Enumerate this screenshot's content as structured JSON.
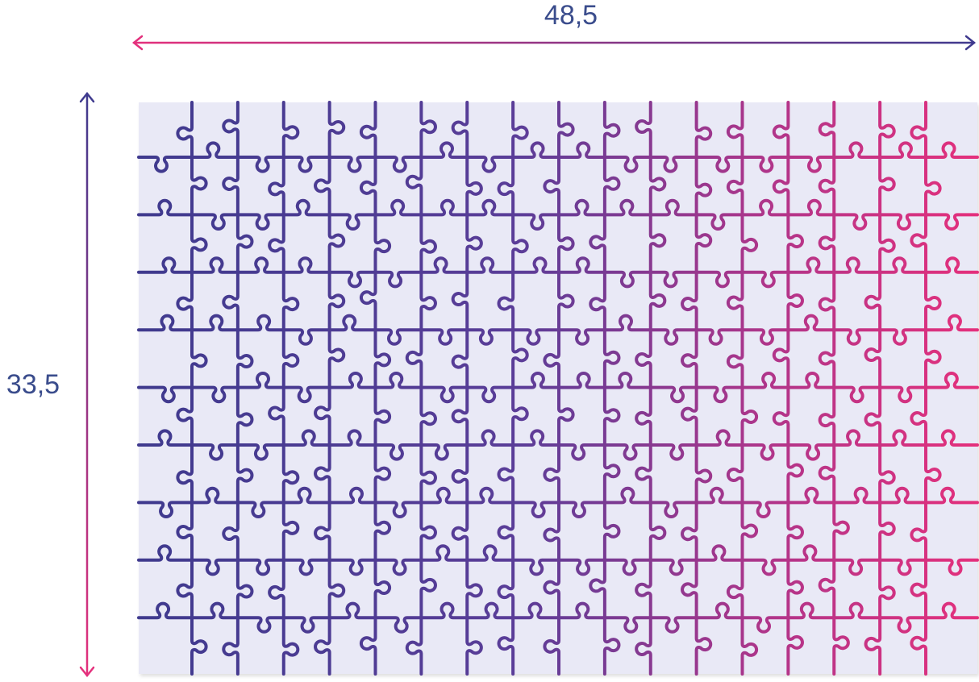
{
  "dimensions": {
    "width_label": "48,5",
    "height_label": "33,5"
  },
  "colors": {
    "line_blue": "#3f3a8e",
    "line_pink": "#e4307c",
    "label_text": "#3a4c8c",
    "puzzle_background": "#e9e9f6"
  },
  "icons": {
    "width_arrow": "double-headed-horizontal-arrow",
    "height_arrow": "double-headed-vertical-arrow"
  }
}
